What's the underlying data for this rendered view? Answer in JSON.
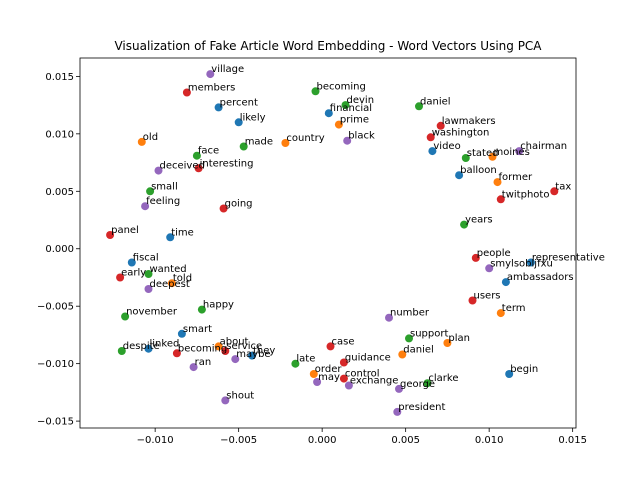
{
  "chart_data": {
    "type": "scatter",
    "title": "Visualization of Fake Article Word Embedding - Word Vectors Using PCA",
    "xlabel": "",
    "ylabel": "",
    "xlim": [
      -0.0145,
      0.0152
    ],
    "ylim": [
      -0.0156,
      0.0166
    ],
    "x_ticks": [
      -0.01,
      -0.005,
      0.0,
      0.005,
      0.01,
      0.015
    ],
    "x_tick_labels": [
      "−0.010",
      "−0.005",
      "0.000",
      "0.005",
      "0.010",
      "0.015"
    ],
    "y_ticks": [
      -0.015,
      -0.01,
      -0.005,
      0.0,
      0.005,
      0.01,
      0.015
    ],
    "y_tick_labels": [
      "−0.015",
      "−0.010",
      "−0.005",
      "0.000",
      "0.005",
      "0.010",
      "0.015"
    ],
    "grid": false,
    "legend": false,
    "colors": [
      "#1f77b4",
      "#ff7f0e",
      "#2ca02c",
      "#d62728",
      "#9467bd"
    ],
    "points": [
      {
        "word": "village",
        "x": -0.0067,
        "y": 0.0152,
        "c": 4
      },
      {
        "word": "members",
        "x": -0.0081,
        "y": 0.0136,
        "c": 3
      },
      {
        "word": "percent",
        "x": -0.0062,
        "y": 0.0123,
        "c": 0
      },
      {
        "word": "becoming",
        "x": -0.0004,
        "y": 0.0137,
        "c": 2
      },
      {
        "word": "devin",
        "x": 0.0014,
        "y": 0.0125,
        "c": 2
      },
      {
        "word": "daniel",
        "x": 0.0058,
        "y": 0.0124,
        "c": 2
      },
      {
        "word": "financial",
        "x": 0.0004,
        "y": 0.0118,
        "c": 0
      },
      {
        "word": "lawmakers",
        "x": 0.0071,
        "y": 0.0107,
        "c": 3
      },
      {
        "word": "old",
        "x": -0.0108,
        "y": 0.0093,
        "c": 1
      },
      {
        "word": "likely",
        "x": -0.005,
        "y": 0.011,
        "c": 0
      },
      {
        "word": "chairman",
        "x": 0.0118,
        "y": 0.0085,
        "c": 4
      },
      {
        "word": "former",
        "x": 0.0105,
        "y": 0.0058,
        "c": 1
      },
      {
        "word": "tax",
        "x": 0.0139,
        "y": 0.005,
        "c": 3
      },
      {
        "word": "panel",
        "x": -0.0127,
        "y": 0.0012,
        "c": 3
      },
      {
        "word": "representative",
        "x": 0.0125,
        "y": -0.0012,
        "c": 0
      },
      {
        "word": "fiscal",
        "x": -0.0114,
        "y": -0.0012,
        "c": 0
      },
      {
        "word": "early",
        "x": -0.0121,
        "y": -0.0025,
        "c": 3
      },
      {
        "word": "november",
        "x": -0.0118,
        "y": -0.0059,
        "c": 2
      },
      {
        "word": "term",
        "x": 0.0107,
        "y": -0.0056,
        "c": 1
      },
      {
        "word": "smart",
        "x": -0.0084,
        "y": -0.0074,
        "c": 0
      },
      {
        "word": "despite",
        "x": -0.012,
        "y": -0.0089,
        "c": 2
      },
      {
        "word": "linked",
        "x": -0.0104,
        "y": -0.0087,
        "c": 0
      },
      {
        "word": "becoming",
        "x": -0.0087,
        "y": -0.0091,
        "c": 3
      },
      {
        "word": "service",
        "x": -0.0058,
        "y": -0.0089,
        "c": 3
      },
      {
        "word": "maybe",
        "x": -0.0052,
        "y": -0.0096,
        "c": 4
      },
      {
        "word": "ran",
        "x": -0.0077,
        "y": -0.0103,
        "c": 4
      },
      {
        "word": "late",
        "x": -0.0016,
        "y": -0.01,
        "c": 2
      },
      {
        "word": "guidance",
        "x": 0.0013,
        "y": -0.0099,
        "c": 3
      },
      {
        "word": "daniel",
        "x": 0.0048,
        "y": -0.0092,
        "c": 1
      },
      {
        "word": "order",
        "x": -0.0005,
        "y": -0.0109,
        "c": 1
      },
      {
        "word": "may",
        "x": -0.0003,
        "y": -0.0116,
        "c": 4
      },
      {
        "word": "control",
        "x": 0.0013,
        "y": -0.0113,
        "c": 3
      },
      {
        "word": "exchange",
        "x": 0.0016,
        "y": -0.0119,
        "c": 4
      },
      {
        "word": "george",
        "x": 0.0046,
        "y": -0.0122,
        "c": 4
      },
      {
        "word": "clarke",
        "x": 0.0063,
        "y": -0.0117,
        "c": 2
      },
      {
        "word": "begin",
        "x": 0.0112,
        "y": -0.0109,
        "c": 0
      },
      {
        "word": "shout",
        "x": -0.0058,
        "y": -0.0132,
        "c": 4
      },
      {
        "word": "president",
        "x": 0.0045,
        "y": -0.0142,
        "c": 4
      },
      {
        "word": "deceived",
        "x": -0.0098,
        "y": 0.0068,
        "c": 4
      },
      {
        "word": "feeling",
        "x": -0.0106,
        "y": 0.0037,
        "c": 4
      },
      {
        "word": "wanted",
        "x": -0.0104,
        "y": -0.0022,
        "c": 2
      },
      {
        "word": "deepest",
        "x": -0.0104,
        "y": -0.0035,
        "c": 4
      },
      {
        "word": "interesting",
        "x": -0.0074,
        "y": 0.007,
        "c": 3
      },
      {
        "word": "small",
        "x": -0.0103,
        "y": 0.005,
        "c": 2
      },
      {
        "word": "face",
        "x": -0.0075,
        "y": 0.0081,
        "c": 2
      },
      {
        "word": "black",
        "x": 0.0015,
        "y": 0.0094,
        "c": 4
      },
      {
        "word": "prime",
        "x": 0.001,
        "y": 0.0108,
        "c": 1
      },
      {
        "word": "washington",
        "x": 0.0065,
        "y": 0.0097,
        "c": 3
      },
      {
        "word": "stated",
        "x": 0.0086,
        "y": 0.0079,
        "c": 2
      },
      {
        "word": "moines",
        "x": 0.0102,
        "y": 0.008,
        "c": 1
      },
      {
        "word": "balloon",
        "x": 0.0082,
        "y": 0.0064,
        "c": 0
      },
      {
        "word": "twitphoto",
        "x": 0.0107,
        "y": 0.0043,
        "c": 3
      },
      {
        "word": "smylsobljfxu",
        "x": 0.01,
        "y": -0.0017,
        "c": 4
      },
      {
        "word": "ambassadors",
        "x": 0.011,
        "y": -0.0029,
        "c": 0
      },
      {
        "word": "users",
        "x": 0.009,
        "y": -0.0045,
        "c": 3
      },
      {
        "word": "told",
        "x": -0.009,
        "y": -0.003,
        "c": 1
      },
      {
        "word": "happy",
        "x": -0.0072,
        "y": -0.0053,
        "c": 2
      },
      {
        "word": "about",
        "x": -0.0062,
        "y": -0.0085,
        "c": 1
      },
      {
        "word": "they",
        "x": -0.0042,
        "y": -0.0093,
        "c": 0
      },
      {
        "word": "case",
        "x": 0.0005,
        "y": -0.0085,
        "c": 3
      },
      {
        "word": "support",
        "x": 0.0052,
        "y": -0.0078,
        "c": 2
      },
      {
        "word": "plan",
        "x": 0.0075,
        "y": -0.0082,
        "c": 1
      },
      {
        "word": "video",
        "x": 0.0066,
        "y": 0.0085,
        "c": 0
      },
      {
        "word": "country",
        "x": -0.0022,
        "y": 0.0092,
        "c": 1
      },
      {
        "word": "made",
        "x": -0.0047,
        "y": 0.0089,
        "c": 2
      },
      {
        "word": "time",
        "x": -0.0091,
        "y": 0.001,
        "c": 0
      },
      {
        "word": "years",
        "x": 0.0085,
        "y": 0.0021,
        "c": 2
      },
      {
        "word": "people",
        "x": 0.0092,
        "y": -0.0008,
        "c": 3
      },
      {
        "word": "going",
        "x": -0.0059,
        "y": 0.0035,
        "c": 3
      },
      {
        "word": "number",
        "x": 0.004,
        "y": -0.006,
        "c": 4
      }
    ]
  }
}
